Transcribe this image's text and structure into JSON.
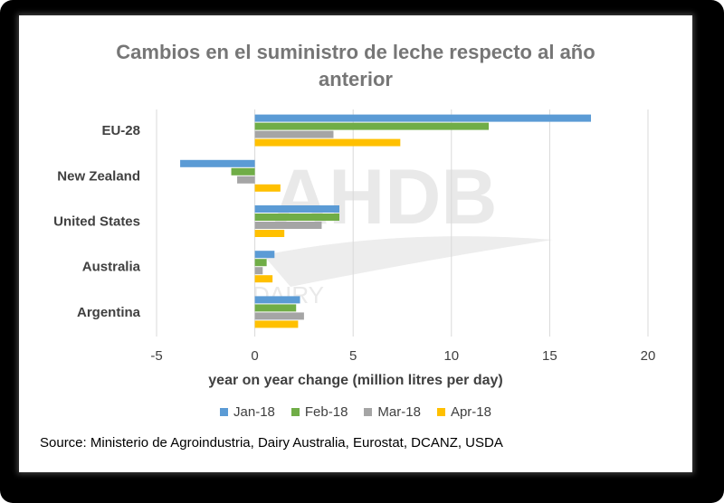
{
  "title_line1": "Cambios en el suministro de leche respecto al año",
  "title_line2": "anterior",
  "source": "Source: Ministerio de Agroindustria, Dairy Australia, Eurostat, DCANZ, USDA",
  "watermark": {
    "main": "AHDB",
    "sub": "DAIRY"
  },
  "colors": {
    "Jan-18": "#5b9bd5",
    "Feb-18": "#70ad47",
    "Mar-18": "#a5a5a5",
    "Apr-18": "#ffc000",
    "grid": "#d9d9d9"
  },
  "chart_data": {
    "type": "bar",
    "orientation": "horizontal",
    "title": "Cambios en el suministro de leche respecto al año anterior",
    "xlabel": "year on year change (million litres per day)",
    "ylabel": "",
    "categories": [
      "EU-28",
      "New Zealand",
      "United States",
      "Australia",
      "Argentina"
    ],
    "xlim": [
      -5,
      20
    ],
    "xticks": [
      "-5",
      "0",
      "5",
      "10",
      "15",
      "20"
    ],
    "grid": true,
    "legend_position": "bottom",
    "series": [
      {
        "name": "Jan-18",
        "values": [
          17.1,
          -3.8,
          4.3,
          1.0,
          2.3
        ]
      },
      {
        "name": "Feb-18",
        "values": [
          11.9,
          -1.2,
          4.3,
          0.6,
          2.1
        ]
      },
      {
        "name": "Mar-18",
        "values": [
          4.0,
          -0.9,
          3.4,
          0.4,
          2.5
        ]
      },
      {
        "name": "Apr-18",
        "values": [
          7.4,
          1.3,
          1.5,
          0.9,
          2.2
        ]
      }
    ]
  }
}
